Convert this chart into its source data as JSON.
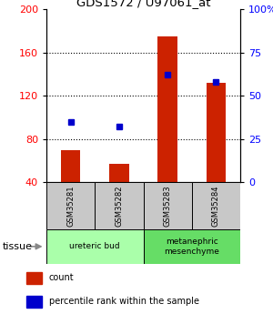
{
  "title": "GDS1572 / U97061_at",
  "samples": [
    "GSM35281",
    "GSM35282",
    "GSM35283",
    "GSM35284"
  ],
  "count_values": [
    70,
    57,
    175,
    132
  ],
  "percentile_values": [
    35,
    32,
    62,
    58
  ],
  "count_base": 40,
  "left_ylim": [
    40,
    200
  ],
  "right_ylim": [
    0,
    100
  ],
  "left_yticks": [
    40,
    80,
    120,
    160,
    200
  ],
  "right_yticks": [
    0,
    25,
    50,
    75,
    100
  ],
  "right_yticklabels": [
    "0",
    "25",
    "50",
    "75",
    "100%"
  ],
  "tissue_groups": [
    {
      "label": "ureteric bud",
      "samples": [
        0,
        1
      ],
      "color": "#aaffaa"
    },
    {
      "label": "metanephric\nmesenchyme",
      "samples": [
        2,
        3
      ],
      "color": "#66dd66"
    }
  ],
  "bar_color": "#cc2200",
  "point_color": "#0000cc",
  "bar_width": 0.4,
  "sample_box_color": "#c8c8c8",
  "legend_items": [
    {
      "color": "#cc2200",
      "label": "count"
    },
    {
      "color": "#0000cc",
      "label": "percentile rank within the sample"
    }
  ],
  "xlabel_tissue": "tissue",
  "figsize": [
    3.0,
    3.45
  ],
  "dpi": 100
}
